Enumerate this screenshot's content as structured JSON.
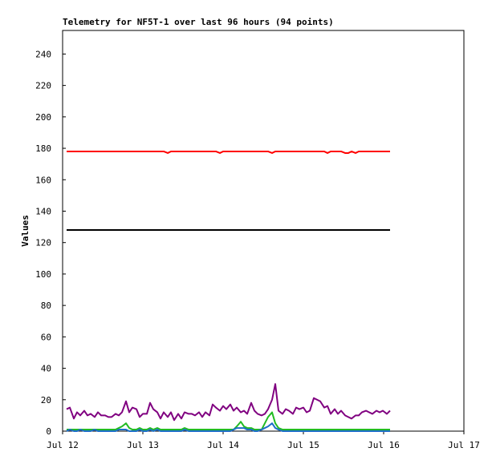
{
  "chart_data": {
    "type": "line",
    "title": "Telemetry for NF5T-1 over last 96 hours (94 points)",
    "ylabel": "Values",
    "x": [
      12.05,
      12.09,
      12.14,
      12.18,
      12.22,
      12.27,
      12.31,
      12.35,
      12.4,
      12.44,
      12.48,
      12.53,
      12.57,
      12.61,
      12.66,
      12.7,
      12.74,
      12.79,
      12.83,
      12.87,
      12.92,
      12.96,
      13.0,
      13.05,
      13.09,
      13.13,
      13.18,
      13.22,
      13.26,
      13.31,
      13.35,
      13.39,
      13.44,
      13.48,
      13.52,
      13.57,
      13.61,
      13.65,
      13.7,
      13.74,
      13.78,
      13.83,
      13.87,
      13.91,
      13.96,
      14.0,
      14.04,
      14.09,
      14.13,
      14.17,
      14.22,
      14.26,
      14.3,
      14.35,
      14.39,
      14.43,
      14.48,
      14.52,
      14.56,
      14.61,
      14.65,
      14.69,
      14.74,
      14.78,
      14.82,
      14.87,
      14.91,
      14.95,
      15.0,
      15.04,
      15.08,
      15.13,
      15.17,
      15.21,
      15.26,
      15.3,
      15.34,
      15.39,
      15.43,
      15.47,
      15.52,
      15.56,
      15.6,
      15.65,
      15.69,
      15.73,
      15.78,
      15.82,
      15.86,
      15.91,
      15.95,
      15.99,
      16.04,
      16.08
    ],
    "series": [
      {
        "color": "#ff0000",
        "values": [
          178,
          178,
          178,
          178,
          178,
          178,
          178,
          178,
          178,
          178,
          178,
          178,
          178,
          178,
          178,
          178,
          178,
          178,
          178,
          178,
          178,
          178,
          178,
          178,
          178,
          178,
          178,
          178,
          178,
          177,
          178,
          178,
          178,
          178,
          178,
          178,
          178,
          178,
          178,
          178,
          178,
          178,
          178,
          178,
          177,
          178,
          178,
          178,
          178,
          178,
          178,
          178,
          178,
          178,
          178,
          178,
          178,
          178,
          178,
          177,
          178,
          178,
          178,
          178,
          178,
          178,
          178,
          178,
          178,
          178,
          178,
          178,
          178,
          178,
          178,
          177,
          178,
          178,
          178,
          178,
          177,
          177,
          178,
          177,
          178,
          178,
          178,
          178,
          178,
          178,
          178,
          178,
          178,
          178
        ]
      },
      {
        "color": "#000000",
        "values": [
          128,
          128,
          128,
          128,
          128,
          128,
          128,
          128,
          128,
          128,
          128,
          128,
          128,
          128,
          128,
          128,
          128,
          128,
          128,
          128,
          128,
          128,
          128,
          128,
          128,
          128,
          128,
          128,
          128,
          128,
          128,
          128,
          128,
          128,
          128,
          128,
          128,
          128,
          128,
          128,
          128,
          128,
          128,
          128,
          128,
          128,
          128,
          128,
          128,
          128,
          128,
          128,
          128,
          128,
          128,
          128,
          128,
          128,
          128,
          128,
          128,
          128,
          128,
          128,
          128,
          128,
          128,
          128,
          128,
          128,
          128,
          128,
          128,
          128,
          128,
          128,
          128,
          128,
          128,
          128,
          128,
          128,
          128,
          128,
          128,
          128,
          128,
          128,
          128,
          128,
          128,
          128,
          128,
          128
        ]
      },
      {
        "color": "#800080",
        "values": [
          14,
          15,
          8,
          12,
          10,
          13,
          10,
          11,
          9,
          12,
          10,
          10,
          9,
          9,
          11,
          10,
          12,
          19,
          12,
          15,
          14,
          9,
          11,
          11,
          18,
          14,
          12,
          8,
          12,
          9,
          12,
          7,
          11,
          8,
          12,
          11,
          11,
          10,
          12,
          9,
          12,
          10,
          17,
          15,
          13,
          16,
          14,
          17,
          13,
          15,
          12,
          13,
          11,
          18,
          13,
          11,
          10,
          11,
          14,
          20,
          30,
          13,
          11,
          14,
          13,
          11,
          15,
          14,
          15,
          12,
          13,
          21,
          20,
          19,
          15,
          16,
          11,
          14,
          11,
          13,
          10,
          9,
          8,
          10,
          10,
          12,
          13,
          12,
          11,
          13,
          12,
          13,
          11,
          13
        ]
      },
      {
        "color": "#22bb22",
        "values": [
          1,
          1,
          1,
          1,
          1,
          1,
          1,
          1,
          1,
          1,
          1,
          1,
          1,
          1,
          1,
          2,
          3,
          5,
          2,
          1,
          1,
          2,
          1,
          1,
          2,
          1,
          2,
          1,
          1,
          1,
          1,
          1,
          1,
          1,
          2,
          1,
          1,
          1,
          1,
          1,
          1,
          1,
          1,
          1,
          1,
          1,
          1,
          1,
          1,
          3,
          6,
          3,
          2,
          2,
          1,
          1,
          1,
          5,
          9,
          12,
          5,
          2,
          1,
          1,
          1,
          1,
          1,
          1,
          1,
          1,
          1,
          1,
          1,
          1,
          1,
          1,
          1,
          1,
          1,
          1,
          1,
          1,
          1,
          1,
          1,
          1,
          1,
          1,
          1,
          1,
          1,
          1,
          1,
          1
        ]
      },
      {
        "color": "#1e6ec8",
        "values": [
          0,
          1,
          0,
          0,
          1,
          0,
          0,
          0,
          1,
          0,
          0,
          0,
          0,
          0,
          0,
          1,
          1,
          1,
          0,
          0,
          0,
          1,
          0,
          0,
          1,
          0,
          1,
          0,
          0,
          0,
          0,
          0,
          0,
          0,
          1,
          0,
          0,
          0,
          0,
          0,
          0,
          0,
          0,
          0,
          0,
          0,
          0,
          0,
          1,
          2,
          2,
          2,
          1,
          1,
          0,
          0,
          1,
          2,
          3,
          5,
          2,
          1,
          0,
          0,
          0,
          0,
          0,
          0,
          0,
          0,
          0,
          0,
          0,
          0,
          0,
          0,
          0,
          0,
          0,
          0,
          0,
          0,
          0,
          0,
          0,
          0,
          0,
          0,
          0,
          0,
          0,
          0,
          0,
          0
        ]
      }
    ],
    "xlim": [
      12,
      17
    ],
    "xticks": [
      {
        "value": 12,
        "label": "Jul 12"
      },
      {
        "value": 13,
        "label": "Jul 13"
      },
      {
        "value": 14,
        "label": "Jul 14"
      },
      {
        "value": 15,
        "label": "Jul 15"
      },
      {
        "value": 16,
        "label": "Jul 16"
      },
      {
        "value": 17,
        "label": "Jul 17"
      }
    ],
    "ylim": [
      0,
      255
    ],
    "yticks": [
      0,
      20,
      40,
      60,
      80,
      100,
      120,
      140,
      160,
      180,
      200,
      220,
      240
    ],
    "grid": false
  }
}
